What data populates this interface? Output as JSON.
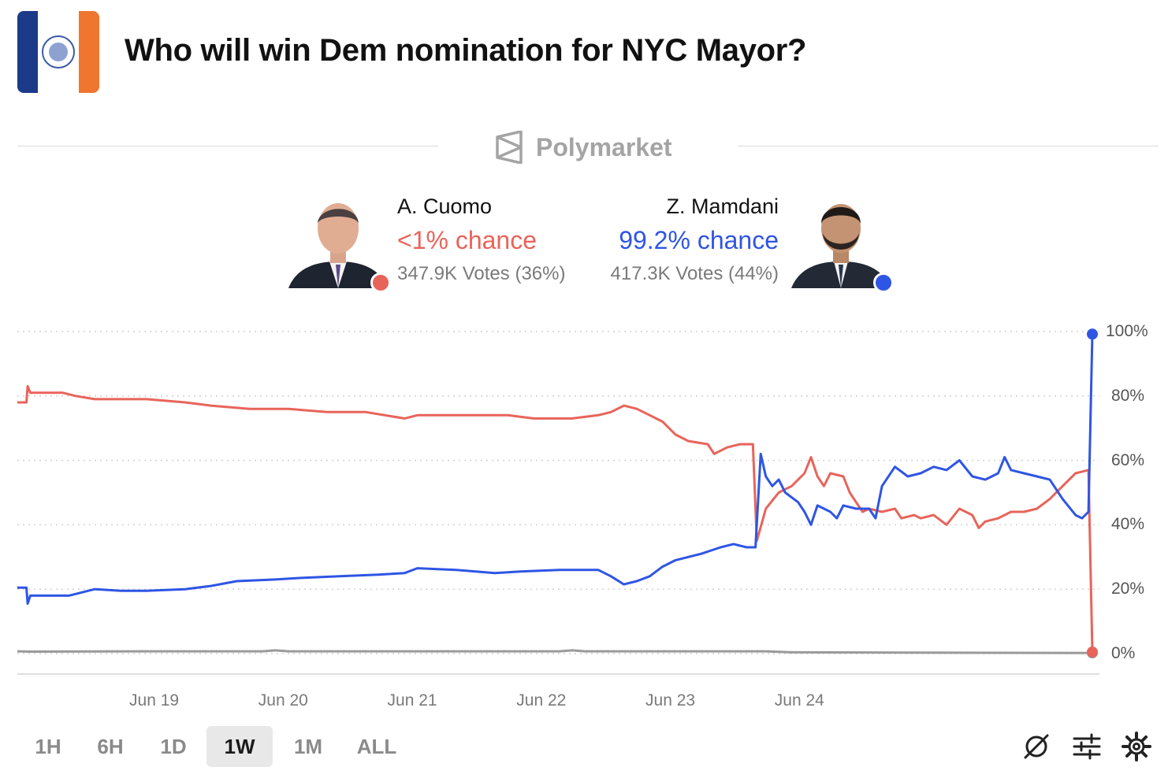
{
  "header": {
    "title": "Who will win Dem nomination for NYC Mayor?"
  },
  "brand": {
    "name": "Polymarket"
  },
  "candidates": [
    {
      "name": "A. Cuomo",
      "chance": "<1% chance",
      "votes": "347.9K Votes (36%)",
      "color": "#e8645a"
    },
    {
      "name": "Z. Mamdani",
      "chance": "99.2% chance",
      "votes": "417.3K Votes (44%)",
      "color": "#2f55e4"
    }
  ],
  "timeframes": [
    "1H",
    "6H",
    "1D",
    "1W",
    "1M",
    "ALL"
  ],
  "active_timeframe": "1W",
  "tools": [
    "crosshair-off-icon",
    "sliders-icon",
    "gear-icon"
  ],
  "chart_data": {
    "type": "line",
    "x_ticks": [
      "Jun 19",
      "Jun 20",
      "Jun 21",
      "Jun 22",
      "Jun 23",
      "Jun 24"
    ],
    "y_ticks": [
      "100%",
      "80%",
      "60%",
      "40%",
      "20%",
      "0%"
    ],
    "ylim": [
      0,
      100
    ],
    "grid": true,
    "series": [
      {
        "name": "A. Cuomo",
        "color": "#e8645a",
        "points": [
          [
            0,
            78
          ],
          [
            0.07,
            78
          ],
          [
            0.08,
            83
          ],
          [
            0.1,
            81
          ],
          [
            0.35,
            81
          ],
          [
            0.45,
            80
          ],
          [
            0.6,
            79
          ],
          [
            0.8,
            79
          ],
          [
            1.0,
            79
          ],
          [
            1.3,
            78
          ],
          [
            1.5,
            77
          ],
          [
            1.8,
            76
          ],
          [
            2.1,
            76
          ],
          [
            2.4,
            75
          ],
          [
            2.7,
            75
          ],
          [
            3.0,
            73
          ],
          [
            3.1,
            74
          ],
          [
            3.5,
            74
          ],
          [
            3.8,
            74
          ],
          [
            4.0,
            73
          ],
          [
            4.3,
            73
          ],
          [
            4.5,
            74
          ],
          [
            4.6,
            75
          ],
          [
            4.7,
            77
          ],
          [
            4.8,
            76
          ],
          [
            4.9,
            74
          ],
          [
            5.0,
            72
          ],
          [
            5.1,
            68
          ],
          [
            5.2,
            66
          ],
          [
            5.35,
            65
          ],
          [
            5.4,
            62
          ],
          [
            5.5,
            64
          ],
          [
            5.6,
            65
          ],
          [
            5.7,
            65
          ],
          [
            5.73,
            35
          ],
          [
            5.8,
            45
          ],
          [
            5.9,
            50
          ],
          [
            6.0,
            52
          ],
          [
            6.1,
            56
          ],
          [
            6.15,
            61
          ],
          [
            6.2,
            55
          ],
          [
            6.25,
            52
          ],
          [
            6.3,
            56
          ],
          [
            6.4,
            55
          ],
          [
            6.45,
            50
          ],
          [
            6.5,
            47
          ],
          [
            6.55,
            44
          ],
          [
            6.6,
            45
          ],
          [
            6.7,
            44
          ],
          [
            6.8,
            45
          ],
          [
            6.85,
            42
          ],
          [
            6.95,
            43
          ],
          [
            7.0,
            42
          ],
          [
            7.1,
            43
          ],
          [
            7.2,
            40
          ],
          [
            7.3,
            45
          ],
          [
            7.4,
            43
          ],
          [
            7.45,
            39
          ],
          [
            7.5,
            41
          ],
          [
            7.6,
            42
          ],
          [
            7.7,
            44
          ],
          [
            7.8,
            44
          ],
          [
            7.9,
            45
          ],
          [
            8.0,
            48
          ],
          [
            8.1,
            52
          ],
          [
            8.2,
            56
          ],
          [
            8.3,
            57
          ],
          [
            8.33,
            0.5
          ]
        ]
      },
      {
        "name": "Z. Mamdani",
        "color": "#2f55e4",
        "points": [
          [
            0,
            20.5
          ],
          [
            0.07,
            20.5
          ],
          [
            0.08,
            15.5
          ],
          [
            0.1,
            18
          ],
          [
            0.4,
            18
          ],
          [
            0.6,
            20
          ],
          [
            0.8,
            19.5
          ],
          [
            1.0,
            19.5
          ],
          [
            1.3,
            20
          ],
          [
            1.5,
            21
          ],
          [
            1.7,
            22.5
          ],
          [
            2.0,
            23
          ],
          [
            2.2,
            23.5
          ],
          [
            2.5,
            24
          ],
          [
            2.8,
            24.5
          ],
          [
            3.0,
            25
          ],
          [
            3.1,
            26.5
          ],
          [
            3.4,
            26
          ],
          [
            3.7,
            25
          ],
          [
            3.9,
            25.5
          ],
          [
            4.2,
            26
          ],
          [
            4.5,
            26
          ],
          [
            4.6,
            24
          ],
          [
            4.7,
            21.5
          ],
          [
            4.8,
            22.5
          ],
          [
            4.9,
            24
          ],
          [
            5.0,
            27
          ],
          [
            5.1,
            29
          ],
          [
            5.2,
            30
          ],
          [
            5.3,
            31
          ],
          [
            5.45,
            33
          ],
          [
            5.55,
            34
          ],
          [
            5.65,
            33
          ],
          [
            5.72,
            33
          ],
          [
            5.76,
            62
          ],
          [
            5.8,
            55
          ],
          [
            5.85,
            52
          ],
          [
            5.9,
            54
          ],
          [
            5.95,
            50
          ],
          [
            6.05,
            47
          ],
          [
            6.1,
            44
          ],
          [
            6.15,
            40
          ],
          [
            6.2,
            46
          ],
          [
            6.3,
            44
          ],
          [
            6.35,
            42
          ],
          [
            6.4,
            46
          ],
          [
            6.5,
            45
          ],
          [
            6.6,
            45
          ],
          [
            6.65,
            42
          ],
          [
            6.7,
            52
          ],
          [
            6.8,
            58
          ],
          [
            6.9,
            55
          ],
          [
            7.0,
            56
          ],
          [
            7.1,
            58
          ],
          [
            7.2,
            57
          ],
          [
            7.3,
            60
          ],
          [
            7.4,
            55
          ],
          [
            7.5,
            54
          ],
          [
            7.6,
            56
          ],
          [
            7.65,
            61
          ],
          [
            7.7,
            57
          ],
          [
            7.8,
            56
          ],
          [
            7.9,
            55
          ],
          [
            8.0,
            54
          ],
          [
            8.1,
            48
          ],
          [
            8.2,
            43
          ],
          [
            8.25,
            42
          ],
          [
            8.3,
            44
          ],
          [
            8.33,
            99.2
          ]
        ]
      },
      {
        "name": "",
        "color": "#9a9a9a",
        "points": [
          [
            0,
            0.7
          ],
          [
            0.1,
            0.6
          ],
          [
            1.0,
            0.7
          ],
          [
            1.9,
            0.7
          ],
          [
            2.0,
            1.0
          ],
          [
            2.1,
            0.7
          ],
          [
            3.5,
            0.7
          ],
          [
            4.2,
            0.7
          ],
          [
            4.3,
            1.0
          ],
          [
            4.4,
            0.7
          ],
          [
            5.0,
            0.7
          ],
          [
            5.8,
            0.7
          ],
          [
            6.0,
            0.4
          ],
          [
            8.33,
            0.2
          ]
        ]
      }
    ]
  }
}
